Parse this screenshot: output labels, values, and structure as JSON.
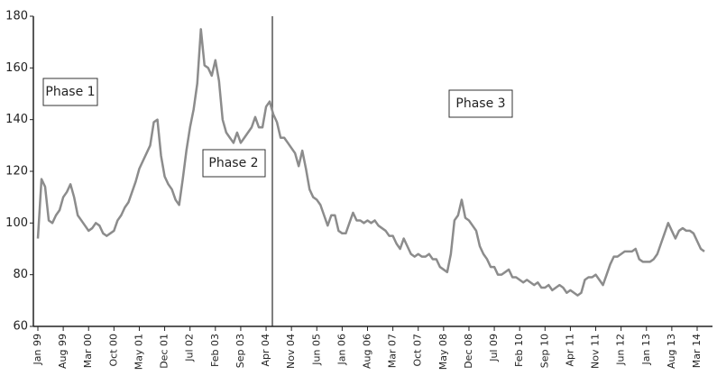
{
  "chart_data": {
    "type": "line",
    "categories": [
      "Jan 99",
      null,
      null,
      null,
      null,
      null,
      null,
      "Aug 99",
      null,
      null,
      null,
      null,
      null,
      null,
      "Mar 00",
      null,
      null,
      null,
      null,
      null,
      null,
      "Oct 00",
      null,
      null,
      null,
      null,
      null,
      null,
      "May 01",
      null,
      null,
      null,
      null,
      null,
      null,
      "Dec 01",
      null,
      null,
      null,
      null,
      null,
      null,
      "Jul 02",
      null,
      null,
      null,
      null,
      null,
      null,
      "Feb 03",
      null,
      null,
      null,
      null,
      null,
      null,
      "Sep 03",
      null,
      null,
      null,
      null,
      null,
      null,
      "Apr 04",
      null,
      null,
      null,
      null,
      null,
      null,
      "Nov 04",
      null,
      null,
      null,
      null,
      null,
      null,
      "Jun 05",
      null,
      null,
      null,
      null,
      null,
      null,
      "Jan 06",
      null,
      null,
      null,
      null,
      null,
      null,
      "Aug 06",
      null,
      null,
      null,
      null,
      null,
      null,
      "Mar 07",
      null,
      null,
      null,
      null,
      null,
      null,
      "Oct 07",
      null,
      null,
      null,
      null,
      null,
      null,
      "May 08",
      null,
      null,
      null,
      null,
      null,
      null,
      "Dec 08",
      null,
      null,
      null,
      null,
      null,
      null,
      "Jul 09",
      null,
      null,
      null,
      null,
      null,
      null,
      "Feb 10",
      null,
      null,
      null,
      null,
      null,
      null,
      "Sep 10",
      null,
      null,
      null,
      null,
      null,
      null,
      "Apr 11",
      null,
      null,
      null,
      null,
      null,
      null,
      "Nov 11",
      null,
      null,
      null,
      null,
      null,
      null,
      "Jun 12",
      null,
      null,
      null,
      null,
      null,
      null,
      "Jan 13",
      null,
      null,
      null,
      null,
      null,
      null,
      "Aug 13",
      null,
      null,
      null,
      null,
      null,
      null,
      "Mar 14",
      null,
      null
    ],
    "values": [
      94,
      117,
      114,
      101,
      100,
      103,
      105,
      110,
      112,
      115,
      110,
      103,
      101,
      99,
      97,
      98,
      100,
      99,
      96,
      95,
      96,
      97,
      101,
      103,
      106,
      108,
      112,
      116,
      121,
      124,
      127,
      130,
      139,
      140,
      126,
      118,
      115,
      113,
      109,
      107,
      117,
      128,
      137,
      144,
      154,
      175,
      161,
      160,
      157,
      163,
      155,
      140,
      135,
      133,
      131,
      135,
      131,
      133,
      135,
      137,
      141,
      137,
      137,
      145,
      147,
      142,
      139,
      133,
      133,
      131,
      129,
      127,
      122,
      128,
      121,
      113,
      110,
      109,
      107,
      103,
      99,
      103,
      103,
      97,
      96,
      96,
      100,
      104,
      101,
      101,
      100,
      101,
      100,
      101,
      99,
      98,
      97,
      95,
      95,
      92,
      90,
      94,
      91,
      88,
      87,
      88,
      87,
      87,
      88,
      86,
      86,
      83,
      82,
      81,
      88,
      101,
      103,
      109,
      102,
      101,
      99,
      97,
      91,
      88,
      86,
      83,
      83,
      80,
      80,
      81,
      82,
      79,
      79,
      78,
      77,
      78,
      77,
      76,
      77,
      75,
      75,
      76,
      74,
      75,
      76,
      75,
      73,
      74,
      73,
      72,
      73,
      78,
      79,
      79,
      80,
      78,
      76,
      80,
      84,
      87,
      87,
      88,
      89,
      89,
      89,
      90,
      86,
      85,
      85,
      85,
      86,
      88,
      92,
      96,
      100,
      97,
      94,
      97,
      98,
      97,
      97,
      96,
      93,
      90,
      89
    ],
    "color": "#8c8c8c",
    "ylim": [
      60,
      180
    ],
    "yticks": [
      60,
      80,
      100,
      120,
      140,
      160,
      180
    ],
    "annotations": [
      "Phase 1",
      "Phase 2",
      "Phase 3"
    ]
  }
}
